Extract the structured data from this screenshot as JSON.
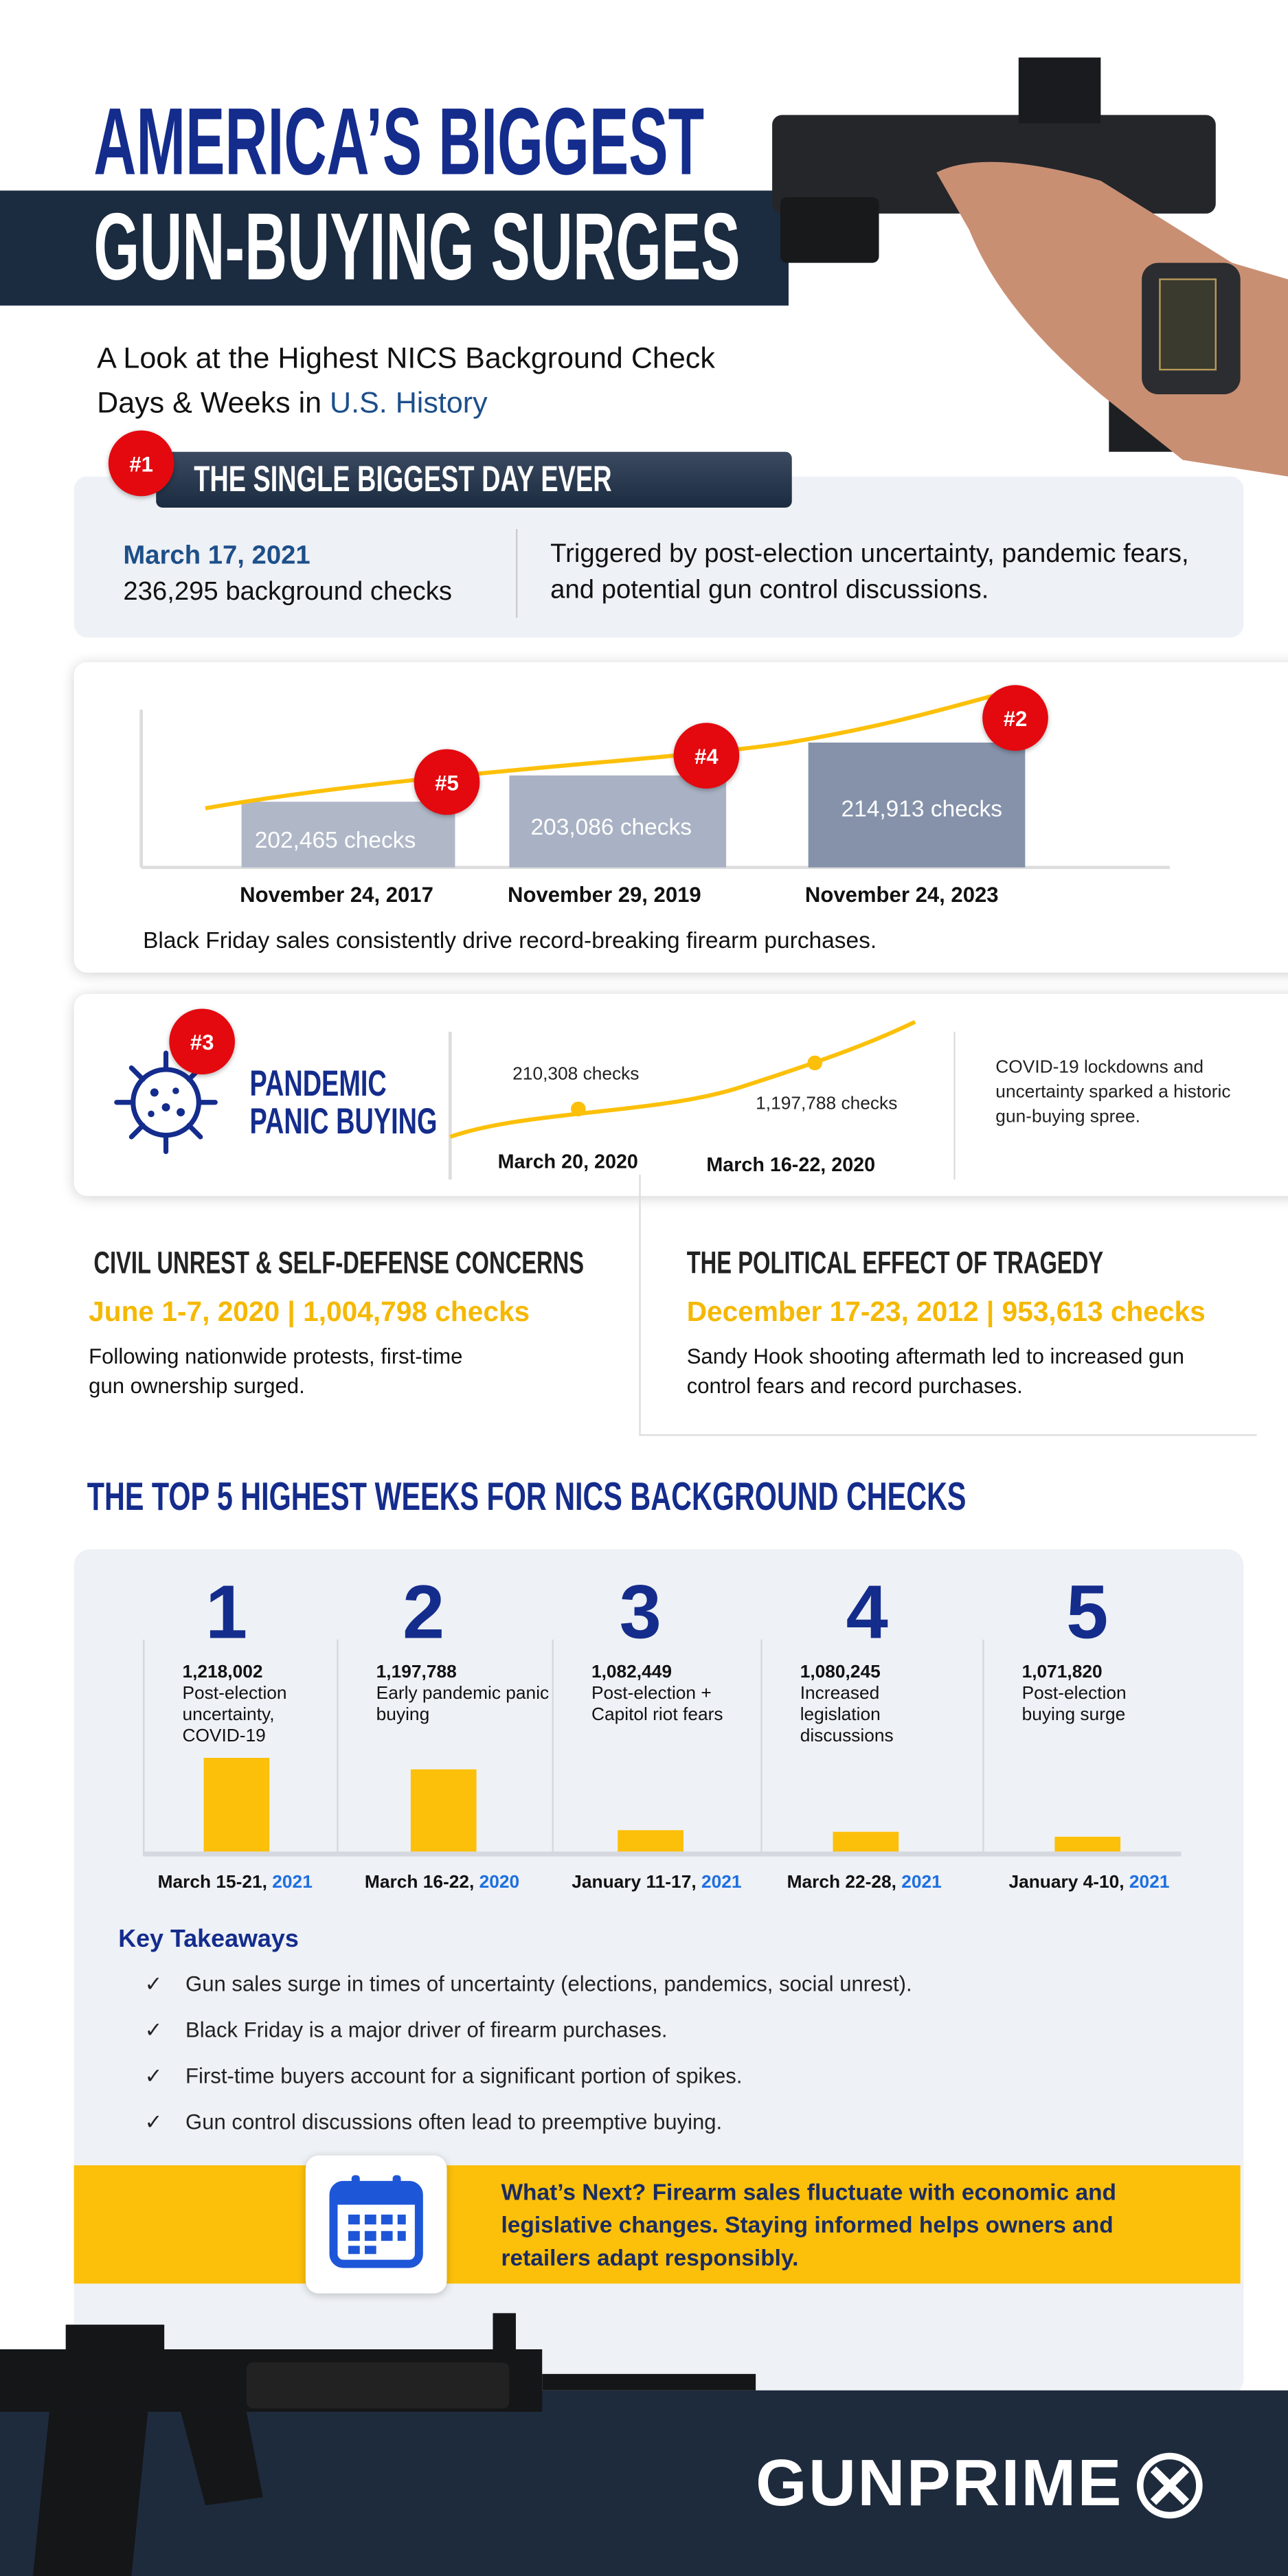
{
  "header": {
    "title_line1": "AMERICA’S BIGGEST",
    "title_line2": "GUN-BUYING SURGES",
    "subtitle_line1": "A Look at the Highest NICS Background Check",
    "subtitle_line2_prefix": "Days & Weeks in ",
    "subtitle_line2_highlight": "U.S. History"
  },
  "biggest_day": {
    "badge": "#1",
    "heading": "THE SINGLE BIGGEST DAY EVER",
    "date": "March 17, 2021",
    "checks": "236,295 background checks",
    "description": "Triggered by post-election uncertainty, pandemic fears, and potential gun control discussions."
  },
  "black_friday": {
    "bars": [
      {
        "badge": "#5",
        "label": "202,465  checks",
        "date": "November 24, 2017"
      },
      {
        "badge": "#4",
        "label": "203,086 checks",
        "date": "November 29, 2019"
      },
      {
        "badge": "#2",
        "label": "214,913 checks",
        "date": "November 24, 2023"
      }
    ],
    "caption": "Black Friday sales consistently drive record-breaking firearm purchases."
  },
  "pandemic": {
    "badge": "#3",
    "title_line1": "PANDEMIC",
    "title_line2": "PANIC BUYING",
    "point1_label": "210,308 checks",
    "point1_date": "March 20, 2020",
    "point2_label": "1,197,788 checks",
    "point2_date": "March 16-22, 2020",
    "description": "COVID-19 lockdowns and uncertainty sparked a historic gun-buying spree."
  },
  "civil_unrest": {
    "heading": "CIVIL UNREST & SELF-DEFENSE CONCERNS",
    "stat": "June 1-7, 2020 | 1,004,798 checks",
    "text": "Following nationwide protests, first-time gun ownership surged."
  },
  "tragedy": {
    "heading": "THE POLITICAL EFFECT OF TRAGEDY",
    "stat": "December 17-23, 2012 | 953,613 checks",
    "text": "Sandy Hook shooting aftermath led to increased gun control fears and record purchases."
  },
  "top5": {
    "heading": "THE TOP 5 HIGHEST WEEKS FOR NICS BACKGROUND CHECKS"
  },
  "chart_data": {
    "type": "bar",
    "categories": [
      "March 15-21, 2021",
      "March 16-22, 2020",
      "January 11-17, 2021",
      "March 22-28, 2021",
      "January 4-10, 2021"
    ],
    "values": [
      1218002,
      1197788,
      1082449,
      1080245,
      1071820
    ],
    "ranks": [
      "1",
      "2",
      "3",
      "4",
      "5"
    ],
    "value_labels": [
      "1,218,002",
      "1,197,788",
      "1,082,449",
      "1,080,245",
      "1,071,820"
    ],
    "descriptions": [
      "Post-election uncertainty, COVID-19",
      "Early pandemic panic buying",
      "Post-election + Capitol riot fears",
      "Increased legislation discussions",
      "Post-election buying surge"
    ],
    "date_prefix": [
      "March 15-21, ",
      "March 16-22, ",
      "January 11-17, ",
      "March 22-28, ",
      "January 4-10, "
    ],
    "years": [
      "2021",
      "2020",
      "2021",
      "2021",
      "2021"
    ],
    "bar_color": "#fcc00a"
  },
  "takeaways": {
    "heading": "Key Takeaways",
    "check": "✓",
    "items": [
      "Gun sales surge in times of uncertainty (elections, pandemics, social unrest).",
      "Black Friday is a major driver of firearm purchases.",
      "First-time buyers account for a significant portion of spikes.",
      "Gun control discussions often lead to preemptive buying."
    ]
  },
  "whats_next": {
    "text": "What’s Next? Firearm sales fluctuate with economic and legislative changes. Staying informed helps owners and retailers adapt responsibly."
  },
  "footer": {
    "logo": "GUNPRIME"
  },
  "colors": {
    "navy": "#142c8c",
    "dark_band": "#1b2b40",
    "red_badge": "#e3090f",
    "yellow": "#fcc00a",
    "panel": "#eef1f5"
  }
}
